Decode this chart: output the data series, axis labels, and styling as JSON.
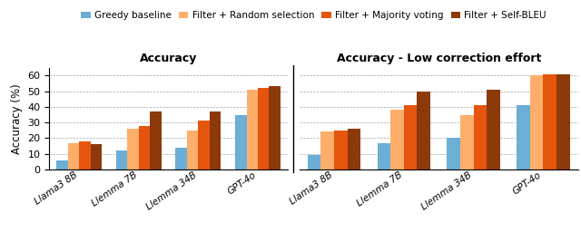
{
  "left_title": "Accuracy",
  "right_title": "Accuracy - Low correction effort",
  "ylabel": "Accuracy (%)",
  "categories": [
    "Llama3 8B",
    "Llemma 7B",
    "Llemma 34B",
    "GPT-4o"
  ],
  "legend_labels": [
    "Greedy baseline",
    "Filter + Random selection",
    "Filter + Majority voting",
    "Filter + Self-BLEU"
  ],
  "colors": [
    "#6baed6",
    "#fdae6b",
    "#e6550d",
    "#8c3a0a"
  ],
  "left_data": {
    "Greedy baseline": [
      6,
      12,
      14,
      35
    ],
    "Filter + Random selection": [
      17,
      26,
      25,
      51
    ],
    "Filter + Majority voting": [
      18,
      28,
      31,
      52
    ],
    "Filter + Self-BLEU": [
      16,
      37,
      37,
      53
    ]
  },
  "right_data": {
    "Greedy baseline": [
      9,
      17,
      20,
      41
    ],
    "Filter + Random selection": [
      24,
      38,
      35,
      60
    ],
    "Filter + Majority voting": [
      25,
      41,
      41,
      61
    ],
    "Filter + Self-BLEU": [
      26,
      50,
      51,
      61
    ]
  },
  "ylim": [
    0,
    65
  ],
  "yticks": [
    0,
    10,
    20,
    30,
    40,
    50,
    60
  ],
  "bar_width": 0.19,
  "figwidth": 6.4,
  "figheight": 2.67
}
